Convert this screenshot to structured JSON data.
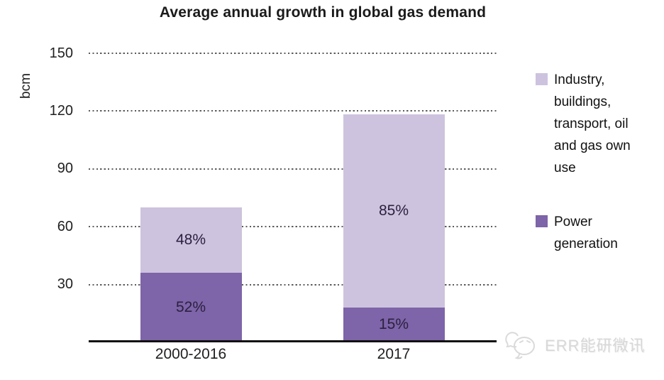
{
  "title": "Average annual growth in global gas demand",
  "y_axis": {
    "label": "bcm",
    "ticks": [
      "150",
      "120",
      "90",
      "60",
      "30"
    ],
    "tick_values": [
      150,
      120,
      90,
      60,
      30
    ]
  },
  "chart_data": {
    "type": "bar",
    "stacked": true,
    "title": "Average annual growth in global gas demand",
    "ylabel": "bcm",
    "ylim": [
      0,
      150
    ],
    "grid": "dotted horizontal",
    "legend_position": "right",
    "categories": [
      "2000-2016",
      "2017"
    ],
    "totals_bcm": [
      70,
      118
    ],
    "series": [
      {
        "name": "Power generation",
        "color": "#7e64a8",
        "values": [
          36,
          18
        ],
        "pct_labels": [
          "52%",
          "15%"
        ]
      },
      {
        "name": "Industry, buildings, transport, oil and gas own use",
        "color": "#cdc3de",
        "values": [
          34,
          100
        ],
        "pct_labels": [
          "48%",
          "85%"
        ]
      }
    ]
  },
  "legend": {
    "items": [
      {
        "label": "Industry, buildings, transport, oil and gas own use",
        "color": "#cdc3de"
      },
      {
        "label": "Power generation",
        "color": "#7e64a8"
      }
    ]
  },
  "watermark": {
    "text": "ERR能研微讯"
  }
}
